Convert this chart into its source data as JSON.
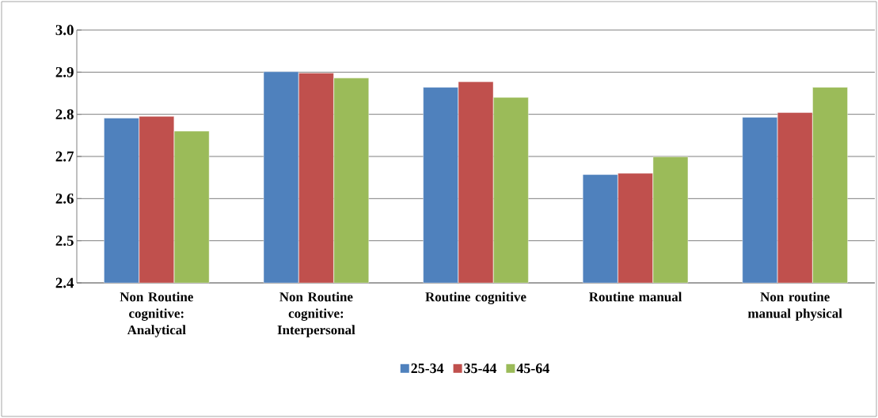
{
  "chart_data": {
    "type": "bar",
    "categories": [
      "Non Routine cognitive: Analytical",
      "Non Routine cognitive: Interpersonal",
      "Routine cognitive",
      "Routine manual",
      "Non routine manual physical"
    ],
    "series": [
      {
        "name": "25-34",
        "color": "#4f81bd",
        "values": [
          2.791,
          2.901,
          2.864,
          2.657,
          2.793
        ]
      },
      {
        "name": "35-44",
        "color": "#c0504d",
        "values": [
          2.795,
          2.898,
          2.877,
          2.66,
          2.804
        ]
      },
      {
        "name": "45-64",
        "color": "#9bbb59",
        "values": [
          2.76,
          2.886,
          2.84,
          2.699,
          2.864
        ]
      }
    ],
    "ylim": [
      2.4,
      3.0
    ],
    "yticks": [
      2.4,
      2.5,
      2.6,
      2.7,
      2.8,
      2.9,
      {
        "value": 3.0,
        "label": "3.0"
      }
    ],
    "grid": "y",
    "legend": "bottom"
  }
}
